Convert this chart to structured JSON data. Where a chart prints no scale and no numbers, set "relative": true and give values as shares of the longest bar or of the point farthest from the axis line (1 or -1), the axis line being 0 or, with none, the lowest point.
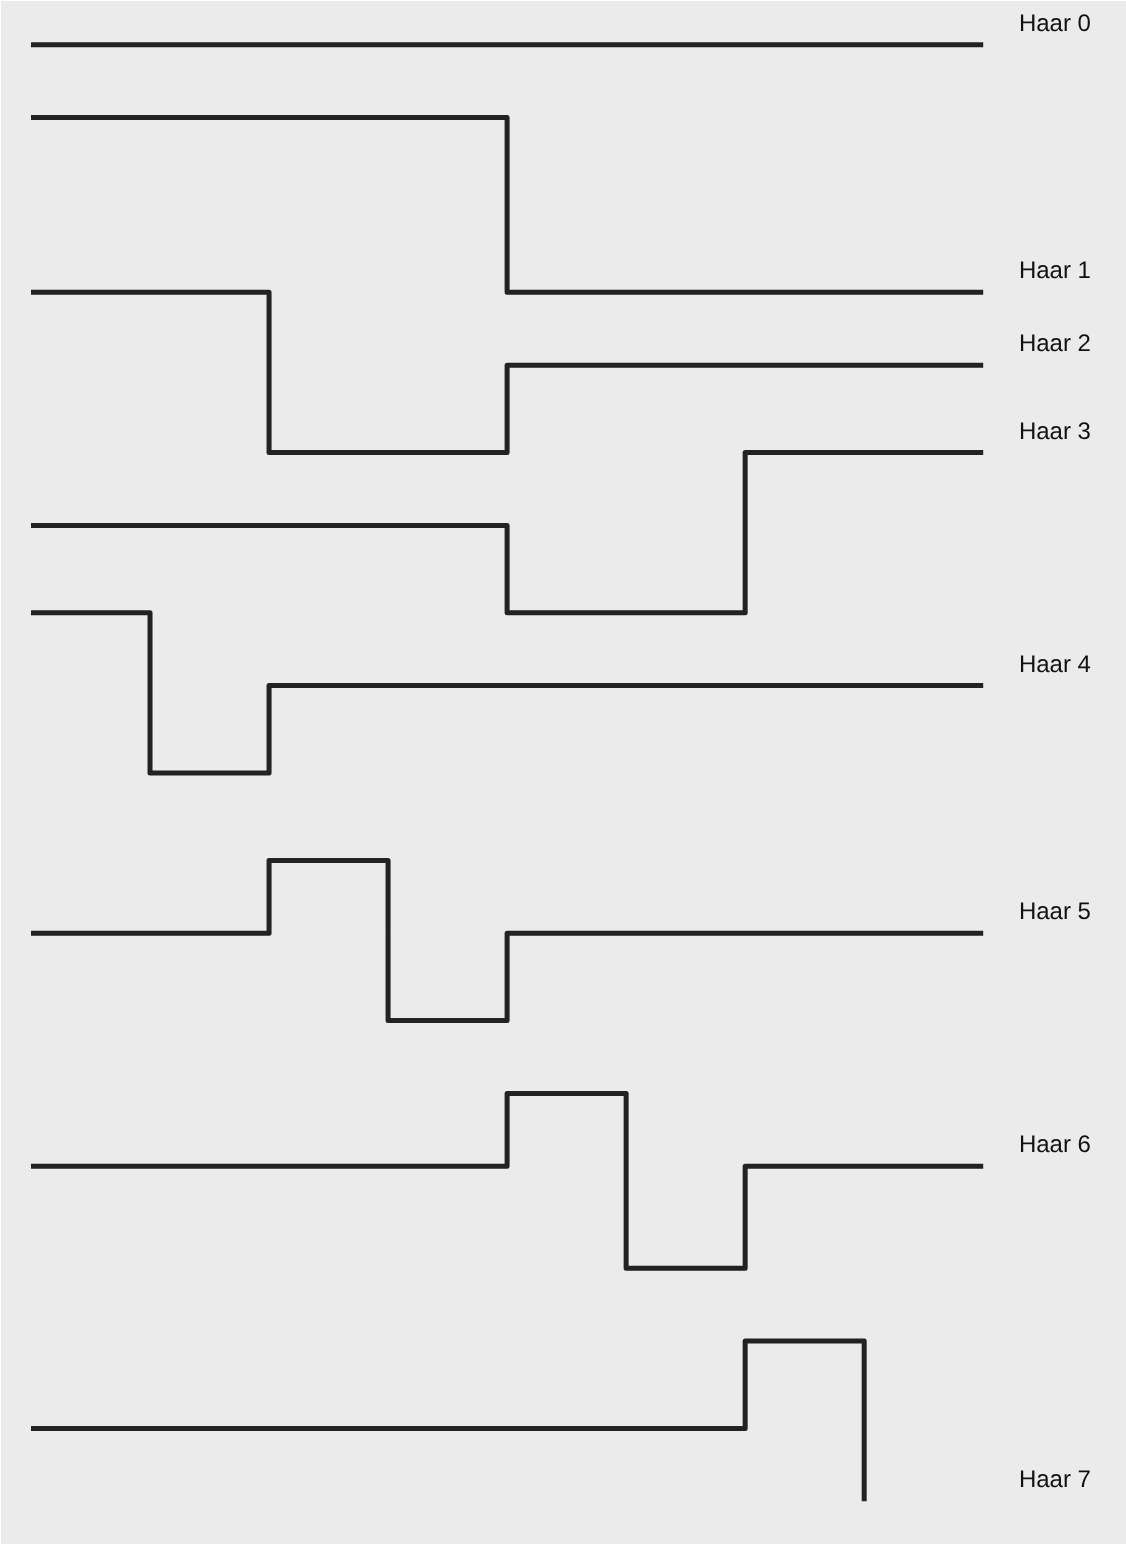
{
  "chart_data": {
    "type": "step",
    "relative": true,
    "grid": false,
    "tick_labels": false,
    "line_style": "solid",
    "marker": "none",
    "categories": [
      null,
      null,
      null,
      null,
      null,
      null,
      null,
      null,
      null
    ],
    "series": [
      {
        "name": "Haar 0",
        "color": "#222222",
        "values": [
          1.0,
          1.0,
          1.0,
          1.0,
          1.0,
          1.0,
          1.0,
          1.0,
          1.0
        ]
      },
      {
        "name": "Haar 1",
        "color": "#222222",
        "values": [
          0.95,
          0.95,
          0.95,
          0.95,
          0.83,
          0.83,
          0.83,
          0.83,
          0.83
        ]
      },
      {
        "name": "Haar 2",
        "color": "#222222",
        "values": [
          0.83,
          0.83,
          0.72,
          0.72,
          0.78,
          0.78,
          0.78,
          0.78,
          0.78
        ]
      },
      {
        "name": "Haar 3",
        "color": "#222222",
        "values": [
          0.67,
          0.67,
          0.67,
          0.67,
          0.61,
          0.61,
          0.72,
          0.72,
          0.72
        ]
      },
      {
        "name": "Haar 4",
        "color": "#222222",
        "values": [
          0.61,
          0.5,
          0.56,
          0.56,
          0.56,
          0.56,
          0.56,
          0.56,
          0.56
        ]
      },
      {
        "name": "Haar 5",
        "color": "#222222",
        "values": [
          0.39,
          0.39,
          0.44,
          0.33,
          0.39,
          0.39,
          0.39,
          0.39,
          0.39
        ]
      },
      {
        "name": "Haar 6",
        "color": "#222222",
        "values": [
          0.23,
          0.23,
          0.23,
          0.23,
          0.28,
          0.16,
          0.23,
          0.23,
          0.23
        ]
      },
      {
        "name": "Haar 7",
        "color": "#222222",
        "values": [
          0.05,
          0.05,
          0.05,
          0.05,
          0.05,
          0.05,
          0.11,
          0.0,
          null
        ]
      }
    ]
  }
}
